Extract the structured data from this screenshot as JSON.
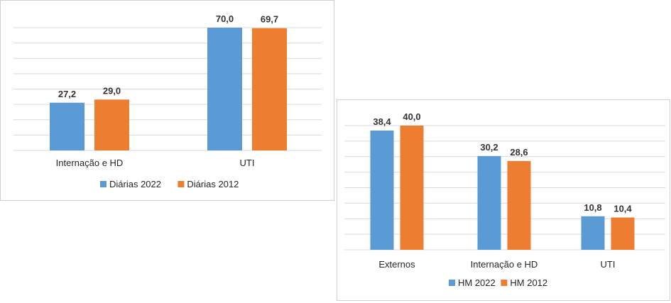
{
  "colors": {
    "series_a": "#5B9BD5",
    "series_b": "#ED7D31",
    "grid": "#D9D9D9"
  },
  "chart_data": [
    {
      "type": "bar",
      "title": "",
      "categories": [
        "Internação e HD",
        "UTI"
      ],
      "series": [
        {
          "name": "Diárias 2022",
          "values": [
            27.2,
            70.0
          ],
          "labels": [
            "27,2",
            "70,0"
          ]
        },
        {
          "name": "Diárias 2012",
          "values": [
            29.0,
            69.7
          ],
          "labels": [
            "29,0",
            "69,7"
          ]
        }
      ],
      "ylim": [
        0,
        70
      ],
      "grid": true,
      "legend": "bottom"
    },
    {
      "type": "bar",
      "title": "",
      "categories": [
        "Externos",
        "Internação e HD",
        "UTI"
      ],
      "series": [
        {
          "name": "HM 2022",
          "values": [
            38.4,
            30.2,
            10.8
          ],
          "labels": [
            "38,4",
            "30,2",
            "10,8"
          ]
        },
        {
          "name": "HM 2012",
          "values": [
            40.0,
            28.6,
            10.4
          ],
          "labels": [
            "40,0",
            "28,6",
            "10,4"
          ]
        }
      ],
      "ylim": [
        0,
        40
      ],
      "grid": true,
      "legend": "bottom"
    }
  ]
}
